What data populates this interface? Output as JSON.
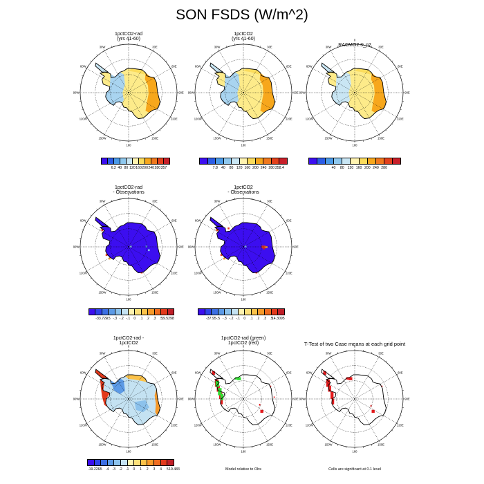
{
  "figure": {
    "title": "SON FSDS (W/m^2)"
  },
  "lon_labels": [
    "0",
    "30E",
    "60E",
    "90E",
    "120E",
    "150E",
    "180",
    "150W",
    "120W",
    "90W",
    "60W",
    "30W"
  ],
  "panels": [
    {
      "id": "p1",
      "title1": "1pctCO2-rad",
      "title2": "(yrs 41-60)",
      "style": "abs",
      "cb_colors": [
        "#3c0ef0",
        "#2b5ce6",
        "#4a9ae8",
        "#8fc8ee",
        "#c9e6f4",
        "#fff3b0",
        "#fbdc5c",
        "#f7a71c",
        "#f0781d",
        "#e3411c",
        "#c8202a"
      ],
      "cb_labels": [
        "6.2",
        "40",
        "80",
        "120",
        "160",
        "200",
        "240",
        "280",
        "357"
      ]
    },
    {
      "id": "p2",
      "title1": "1pctCO2",
      "title2": "(yrs 41-60)",
      "style": "abs",
      "cb_colors": [
        "#3c0ef0",
        "#2b5ce6",
        "#4a9ae8",
        "#8fc8ee",
        "#c9e6f4",
        "#fff3b0",
        "#fbdc5c",
        "#f7a71c",
        "#f0781d",
        "#e3411c",
        "#c8202a"
      ],
      "cb_labels": [
        "7.8",
        "40",
        "80",
        "120",
        "160",
        "200",
        "240",
        "280",
        "358.4"
      ]
    },
    {
      "id": "p3",
      "title1": "RACMO2.3_p2",
      "title2": "",
      "style": "obs",
      "cb_colors": [
        "#3c0ef0",
        "#2b5ce6",
        "#4a9ae8",
        "#8fc8ee",
        "#c9e6f4",
        "#fff3b0",
        "#fbdc5c",
        "#f7a71c",
        "#f0781d",
        "#e3411c",
        "#c8202a"
      ],
      "cb_labels": [
        "40",
        "80",
        "120",
        "160",
        "200",
        "240",
        "280"
      ]
    },
    {
      "id": "p4",
      "title1": "1pctCO2-rad",
      "title2": "- Observations",
      "style": "diffobs",
      "cb_colors": [
        "#3c0ef0",
        "#2e42ea",
        "#3c6fe4",
        "#5c9ae6",
        "#8cc2ec",
        "#c4e2f2",
        "#fff3b0",
        "#fde17a",
        "#fbc24a",
        "#f79a2a",
        "#ef6c1f",
        "#e33a1c",
        "#c01f28"
      ],
      "cb_labels": [
        "-33.729",
        "-.5",
        "-.3",
        "-.2",
        "-.1",
        "0",
        ".1",
        ".2",
        ".3",
        ".5",
        "19.5298"
      ]
    },
    {
      "id": "p5",
      "title1": "1pctCO2",
      "title2": "- Observations",
      "style": "diffobs2",
      "cb_colors": [
        "#3c0ef0",
        "#2e42ea",
        "#3c6fe4",
        "#5c9ae6",
        "#8cc2ec",
        "#c4e2f2",
        "#fff3b0",
        "#fde17a",
        "#fbc24a",
        "#f79a2a",
        "#ef6c1f",
        "#e33a1c",
        "#c01f28"
      ],
      "cb_labels": [
        "-37.95",
        "-.5",
        "-.3",
        "-.2",
        "-.1",
        "0",
        ".1",
        ".2",
        ".3",
        ".5",
        "14.3095"
      ]
    },
    {
      "id": "p7",
      "title1": "1pctCO2-rad -",
      "title2": "1pctCO2",
      "style": "diff",
      "cb_colors": [
        "#3c0ef0",
        "#2e42ea",
        "#3c6fe4",
        "#5c9ae6",
        "#8cc2ec",
        "#c4e2f2",
        "#fff3b0",
        "#fde17a",
        "#fbc24a",
        "#f79a2a",
        "#ef6c1f",
        "#e33a1c",
        "#c01f28"
      ],
      "cb_labels": [
        "-19.226",
        "-5",
        "-4",
        "-3",
        "-2",
        "-1",
        "0",
        "1",
        "2",
        "3",
        "4",
        "5",
        "19.483"
      ]
    },
    {
      "id": "p8",
      "title1": "1pctCO2-rad (green)",
      "title2": "1pctCO2 (red)",
      "style": "sig2",
      "cb_colors": [],
      "cb_labels": [],
      "note": "Model relative to Obs"
    },
    {
      "id": "p9",
      "title1": "T-Test of two Case means at each grid point",
      "title2": "",
      "style": "sig1",
      "cb_colors": [],
      "cb_labels": [],
      "note": "Cells are significant at 0.1 level"
    }
  ]
}
